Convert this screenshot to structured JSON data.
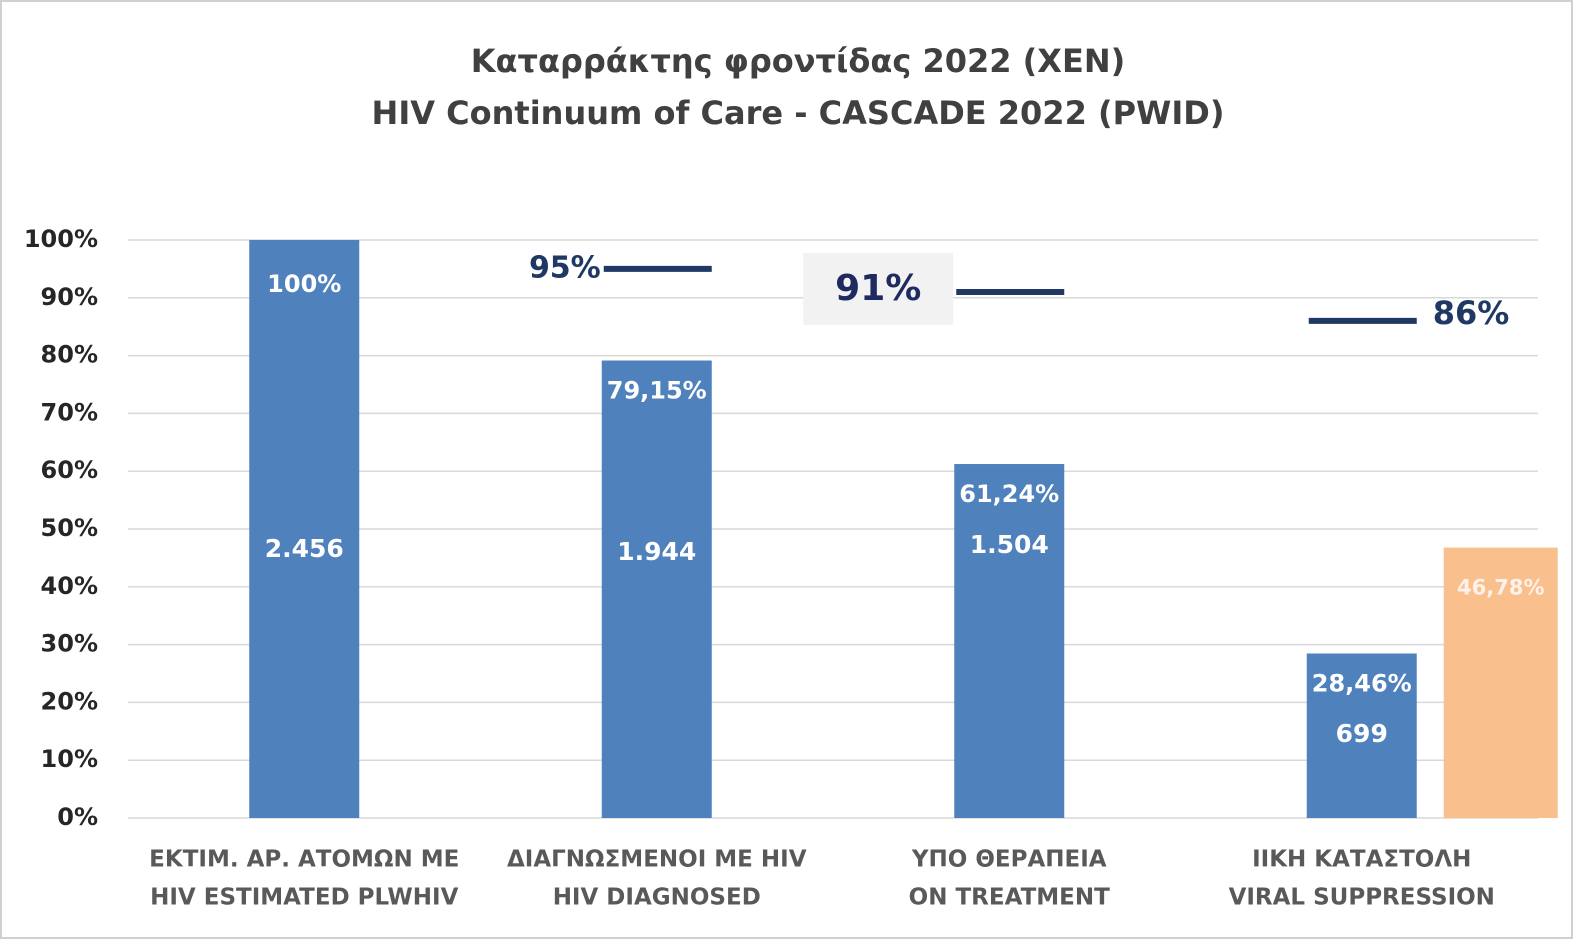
{
  "chart_data": {
    "type": "bar",
    "title": "Καταρράκτης φροντίδας 2022 (ΧΕΝ)",
    "subtitle": "HIV Continuum of Care - CASCADE 2022 (PWID)",
    "categories": [
      [
        "ΕΚΤΙΜ. ΑΡ. ΑΤΟΜΩΝ ΜΕ",
        "HIV ESTIMATED PLWHIV"
      ],
      [
        "ΔΙΑΓΝΩΣΜΕΝΟΙ ΜΕ HIV",
        "HIV DIAGNOSED"
      ],
      [
        "ΥΠΟ ΘΕΡΑΠΕΙΑ",
        "ON TREATMENT"
      ],
      [
        "ΙΙΚΗ ΚΑΤΑΣΤΟΛΗ",
        "VIRAL SUPPRESSION"
      ]
    ],
    "series": [
      {
        "color": "#4f81bd",
        "values": [
          100,
          79.15,
          61.24,
          28.46
        ],
        "value_labels": [
          "100%",
          "79,15%",
          "61,24%",
          "28,46%"
        ]
      },
      {
        "color": "#f9c08e",
        "values": [
          null,
          null,
          null,
          46.78
        ],
        "value_labels": [
          null,
          null,
          null,
          "46,78%"
        ]
      }
    ],
    "counts": {
      "values": [
        2456,
        1944,
        1504,
        699
      ],
      "value_labels": [
        "2.456",
        "1.944",
        "1.504",
        "699"
      ]
    },
    "targets": {
      "color": "#1f3864",
      "values": [
        null,
        95,
        91,
        86
      ],
      "value_labels": [
        null,
        "95%",
        "91%",
        "86%"
      ]
    },
    "ylim": [
      0,
      100
    ],
    "yticks": [
      {
        "value": 0,
        "label": "0%"
      },
      {
        "value": 10,
        "label": "10%"
      },
      {
        "value": 20,
        "label": "20%"
      },
      {
        "value": 30,
        "label": "30%"
      },
      {
        "value": 40,
        "label": "40%"
      },
      {
        "value": 50,
        "label": "50%"
      },
      {
        "value": 60,
        "label": "60%"
      },
      {
        "value": 70,
        "label": "70%"
      },
      {
        "value": 80,
        "label": "80%"
      },
      {
        "value": 90,
        "label": "90%"
      },
      {
        "value": 100,
        "label": "100%"
      }
    ],
    "grid": true
  }
}
